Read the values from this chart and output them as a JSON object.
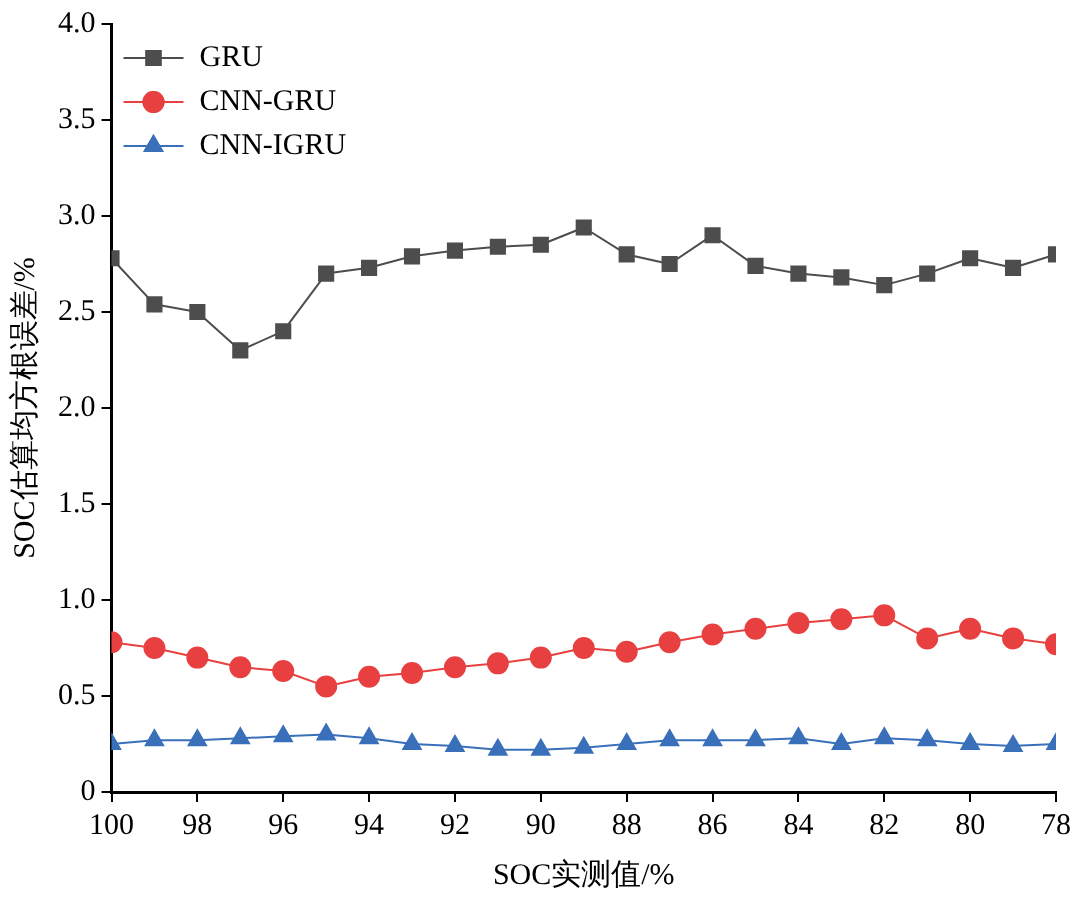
{
  "chart_data": {
    "type": "line",
    "xlabel": "SOC实测值/%",
    "ylabel": "SOC估算均方根误差/%",
    "x": [
      100,
      99,
      98,
      97,
      96,
      95,
      94,
      93,
      92,
      91,
      90,
      89,
      88,
      87,
      86,
      85,
      84,
      83,
      82,
      81,
      80,
      79,
      78
    ],
    "xlim": [
      100,
      78
    ],
    "xticks": [
      100,
      98,
      96,
      94,
      92,
      90,
      88,
      86,
      84,
      82,
      80,
      78
    ],
    "ylim": [
      0,
      4
    ],
    "yticks": [
      0,
      {
        "value": 0.5,
        "label": "0.5"
      },
      {
        "value": 1,
        "label": "1.0"
      },
      {
        "value": 1.5,
        "label": "1.5"
      },
      {
        "value": 2,
        "label": "2.0"
      },
      {
        "value": 2.5,
        "label": "2.5"
      },
      {
        "value": 3,
        "label": "3.0"
      },
      {
        "value": 3.5,
        "label": "3.5"
      },
      {
        "value": 4,
        "label": "4.0"
      }
    ],
    "grid": false,
    "legend": "top left",
    "line_style": "solid",
    "series": [
      {
        "name": "GRU",
        "color": "#4d4d4d",
        "marker": "square",
        "values": [
          2.78,
          2.54,
          2.5,
          2.3,
          2.4,
          2.7,
          2.73,
          2.79,
          2.82,
          2.84,
          2.85,
          2.94,
          2.8,
          2.75,
          2.9,
          2.74,
          2.7,
          2.68,
          2.64,
          2.7,
          2.78,
          2.73,
          2.8
        ]
      },
      {
        "name": "CNN-GRU",
        "color": "#e84040",
        "marker": "circle",
        "values": [
          0.78,
          0.75,
          0.7,
          0.65,
          0.63,
          0.55,
          0.6,
          0.62,
          0.65,
          0.67,
          0.7,
          0.75,
          0.73,
          0.78,
          0.82,
          0.85,
          0.88,
          0.9,
          0.92,
          0.8,
          0.85,
          0.8,
          0.77
        ]
      },
      {
        "name": "CNN-IGRU",
        "color": "#3a6fba",
        "marker": "triangle",
        "values": [
          0.25,
          0.27,
          0.27,
          0.28,
          0.29,
          0.3,
          0.28,
          0.25,
          0.24,
          0.22,
          0.22,
          0.23,
          0.25,
          0.27,
          0.27,
          0.27,
          0.28,
          0.25,
          0.28,
          0.27,
          0.25,
          0.24,
          0.25
        ]
      }
    ]
  }
}
